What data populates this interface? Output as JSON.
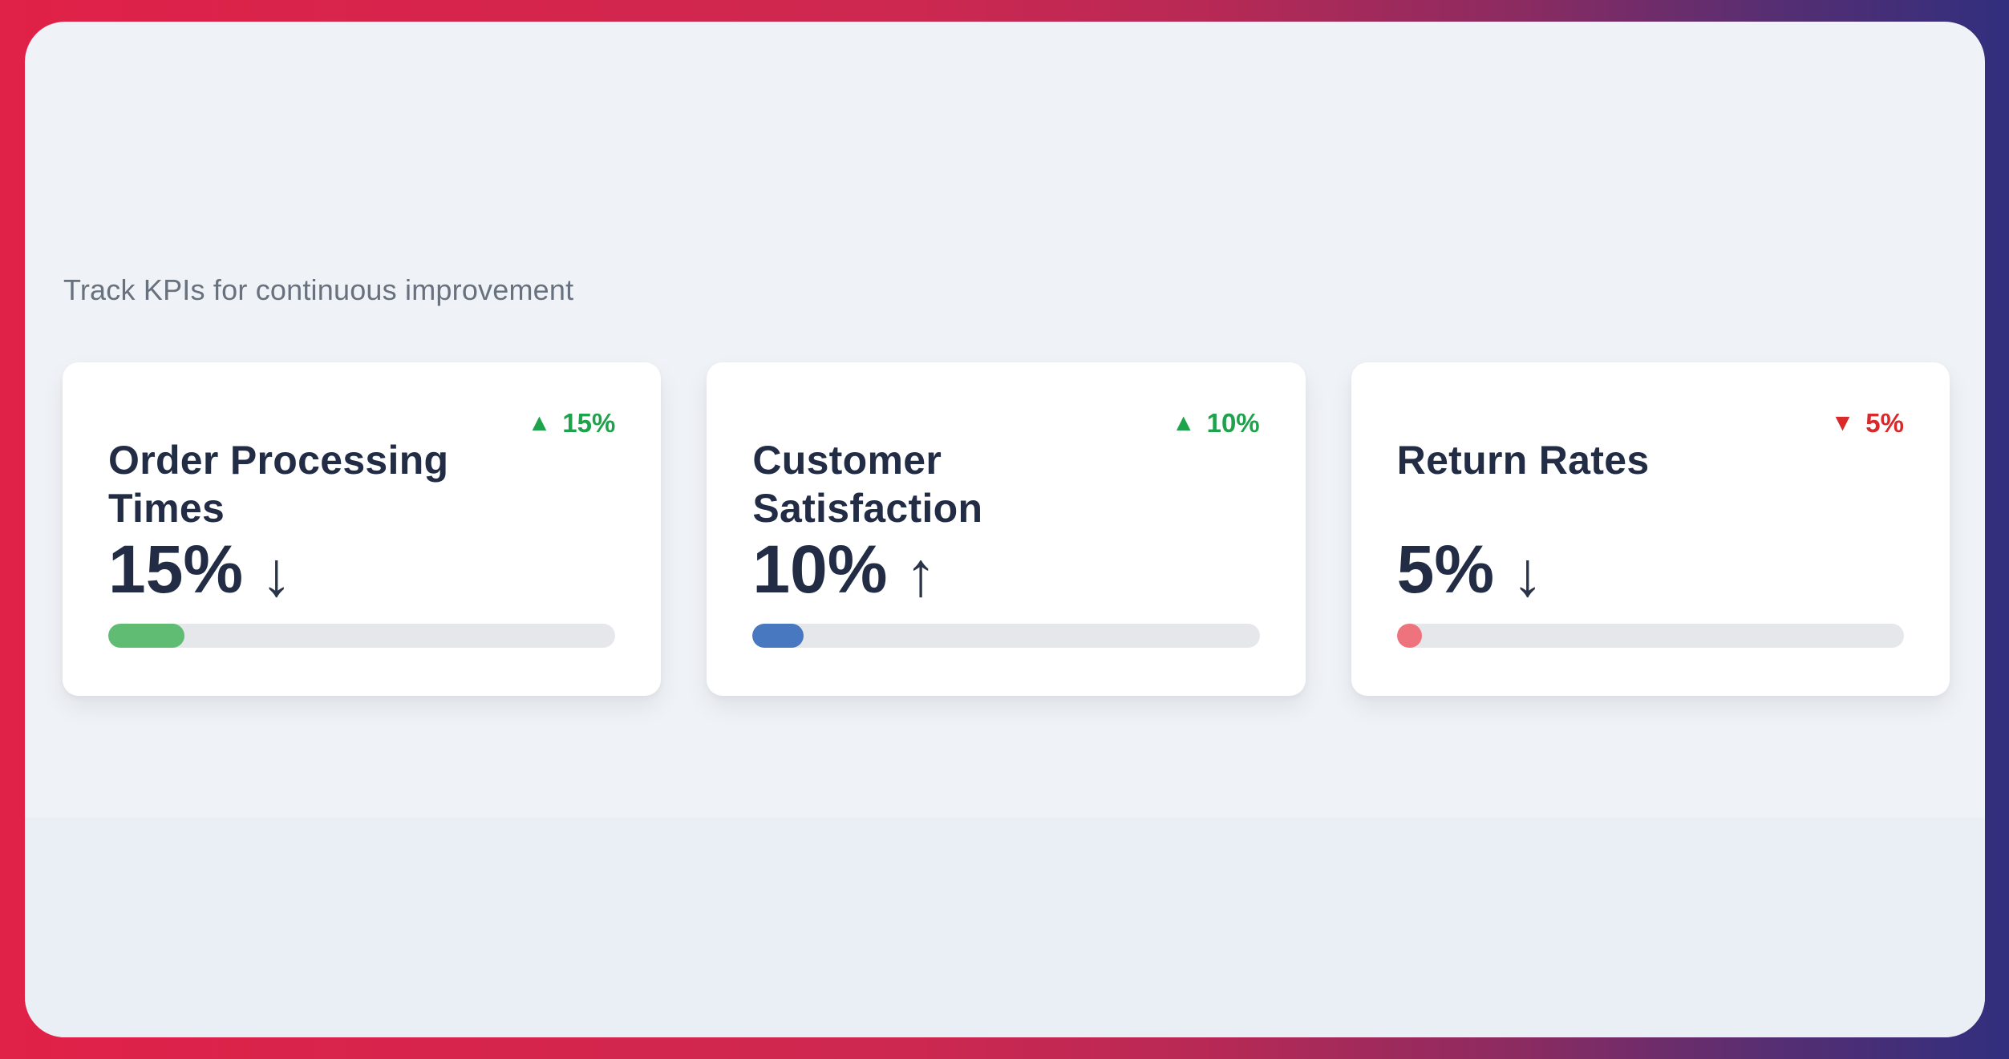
{
  "page": {
    "subtitle": "Track KPIs for continuous improvement"
  },
  "colors": {
    "frame_gradient_start": "#e02148",
    "frame_gradient_end": "#312f7e",
    "panel_background": "#eff2f6",
    "panel_lower_band": "#eaeef5",
    "card_background": "#ffffff",
    "heading_text": "#222d45",
    "subtitle_text": "#68717e",
    "progress_track": "#e5e7eb",
    "trend_up_green": "#1ea24c",
    "trend_down_red": "#d8292b"
  },
  "icons": {
    "triangle_up": "▲",
    "triangle_down": "▼",
    "arrow_up": "↑",
    "arrow_down": "↓"
  },
  "cards": [
    {
      "title": "Order Processing Times",
      "badge": {
        "icon": "▲",
        "label": "15%",
        "direction": "up",
        "color": "#1ea24c"
      },
      "stat": {
        "value": "15%",
        "arrow": "↓",
        "direction": "down"
      },
      "progress": {
        "percent": 15,
        "fill": "#5fbc72"
      }
    },
    {
      "title": "Customer Satisfaction",
      "badge": {
        "icon": "▲",
        "label": "10%",
        "direction": "up",
        "color": "#1ea24c"
      },
      "stat": {
        "value": "10%",
        "arrow": "↑",
        "direction": "up"
      },
      "progress": {
        "percent": 10,
        "fill": "#4878c0"
      }
    },
    {
      "title": "Return Rates",
      "badge": {
        "icon": "▼",
        "label": "5%",
        "direction": "down",
        "color": "#d8292b"
      },
      "stat": {
        "value": "5%",
        "arrow": "↓",
        "direction": "down"
      },
      "progress": {
        "percent": 5,
        "fill": "#ef737d"
      }
    }
  ]
}
